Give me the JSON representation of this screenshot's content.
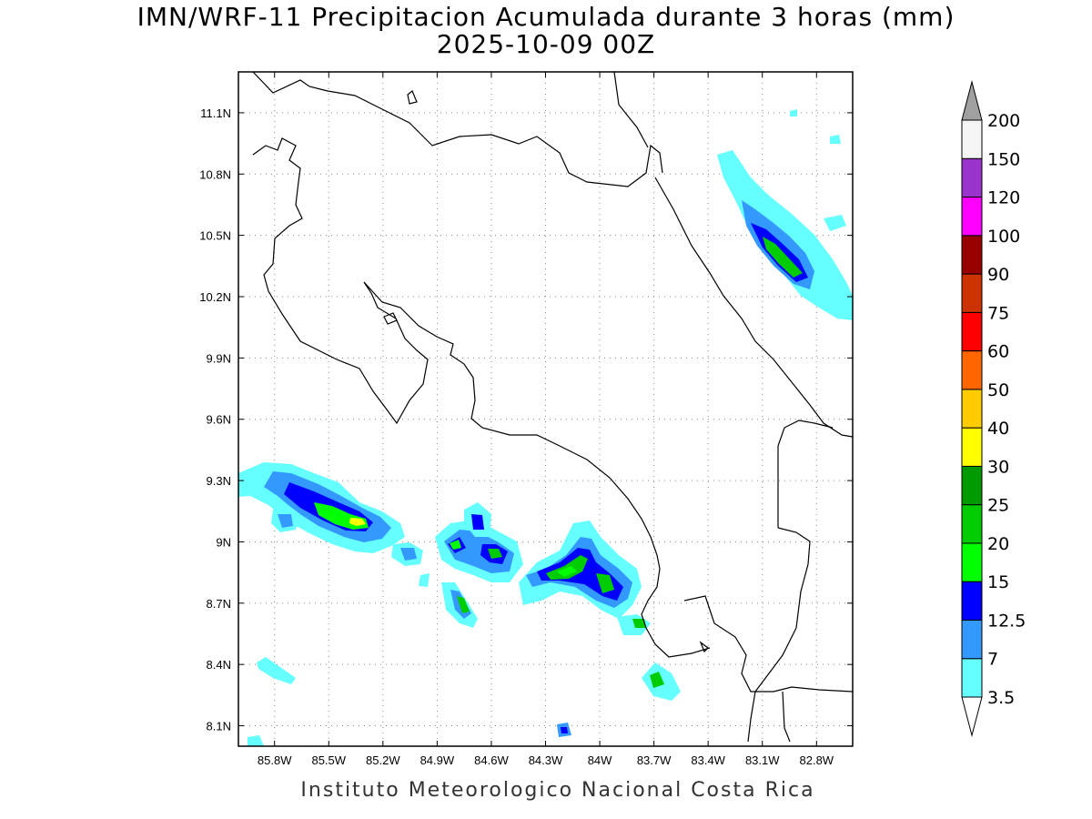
{
  "title": {
    "line1": "IMN/WRF-11 Precipitacion Acumulada durante 3 horas (mm)",
    "line2": "2025-10-09 00Z"
  },
  "credit": "Instituto Meteorologico Nacional Costa Rica",
  "map": {
    "lon_range": [
      -86.0,
      -82.6
    ],
    "lat_range": [
      8.0,
      11.3
    ],
    "lon_ticks": [
      {
        "v": -85.8,
        "label": "85.8W"
      },
      {
        "v": -85.5,
        "label": "85.5W"
      },
      {
        "v": -85.2,
        "label": "85.2W"
      },
      {
        "v": -84.9,
        "label": "84.9W"
      },
      {
        "v": -84.6,
        "label": "84.6W"
      },
      {
        "v": -84.3,
        "label": "84.3W"
      },
      {
        "v": -84.0,
        "label": "84W"
      },
      {
        "v": -83.7,
        "label": "83.7W"
      },
      {
        "v": -83.4,
        "label": "83.4W"
      },
      {
        "v": -83.1,
        "label": "83.1W"
      },
      {
        "v": -82.8,
        "label": "82.8W"
      }
    ],
    "lat_ticks": [
      {
        "v": 11.1,
        "label": "11.1N"
      },
      {
        "v": 10.8,
        "label": "10.8N"
      },
      {
        "v": 10.5,
        "label": "10.5N"
      },
      {
        "v": 10.2,
        "label": "10.2N"
      },
      {
        "v": 9.9,
        "label": "9.9N"
      },
      {
        "v": 9.6,
        "label": "9.6N"
      },
      {
        "v": 9.3,
        "label": "9.3N"
      },
      {
        "v": 9.0,
        "label": "9N"
      },
      {
        "v": 8.7,
        "label": "8.7N"
      },
      {
        "v": 8.4,
        "label": "8.4N"
      },
      {
        "v": 8.1,
        "label": "8.1N"
      }
    ],
    "grid": "dotted"
  },
  "colorbar": {
    "levels": [
      "3.5",
      "7",
      "12.5",
      "15",
      "20",
      "25",
      "30",
      "40",
      "50",
      "60",
      "75",
      "90",
      "100",
      "120",
      "150",
      "200"
    ],
    "colors": [
      "#66ffff",
      "#3399ff",
      "#0000ff",
      "#00ff00",
      "#00cc00",
      "#009900",
      "#ffff00",
      "#ffcc00",
      "#ff6600",
      "#ff0000",
      "#cc3300",
      "#990000",
      "#ff00ff",
      "#9933cc",
      "#f5f5f5"
    ],
    "over_color": "#a0a0a0",
    "under_color": "#ffffff"
  }
}
